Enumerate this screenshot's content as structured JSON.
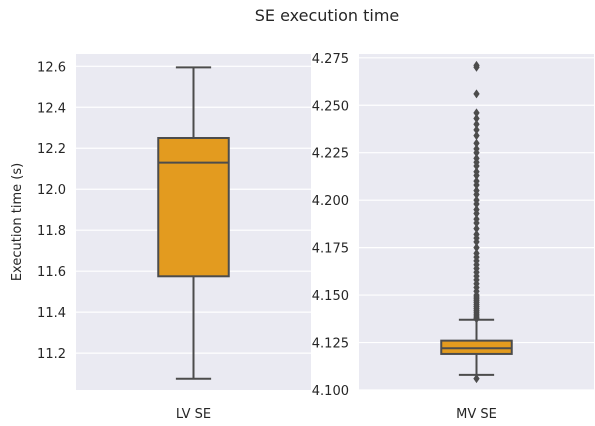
{
  "figure": {
    "title": "SE execution time",
    "colors": {
      "panel_bg": "#EAEAF2",
      "grid": "#FFFFFF",
      "box_fill": "#E39B1F",
      "line": "#4C4C4C",
      "text": "#262626"
    }
  },
  "chart_data": [
    {
      "type": "box",
      "title": "",
      "categories": [
        "LV SE"
      ],
      "xlabel": "",
      "ylabel": "Execution time (s)",
      "ylim": [
        11.02,
        12.66
      ],
      "yticks": [
        11.2,
        11.4,
        11.6,
        11.8,
        12.0,
        12.2,
        12.4,
        12.6
      ],
      "ytick_labels": [
        "11.2",
        "11.4",
        "11.6",
        "11.8",
        "12.0",
        "12.2",
        "12.4",
        "12.6"
      ],
      "grid": true,
      "boxes": [
        {
          "category": "LV SE",
          "whisker_low": 11.075,
          "q1": 11.575,
          "median": 12.13,
          "q3": 12.25,
          "whisker_high": 12.595,
          "outliers": []
        }
      ]
    },
    {
      "type": "box",
      "title": "",
      "categories": [
        "MV SE"
      ],
      "xlabel": "",
      "ylabel": "",
      "ylim": [
        4.1,
        4.277
      ],
      "yticks": [
        4.1,
        4.125,
        4.15,
        4.175,
        4.2,
        4.225,
        4.25,
        4.275
      ],
      "ytick_labels": [
        "4.100",
        "4.125",
        "4.150",
        "4.175",
        "4.200",
        "4.225",
        "4.250",
        "4.275"
      ],
      "grid": true,
      "boxes": [
        {
          "category": "MV SE",
          "whisker_low": 4.108,
          "q1": 4.119,
          "median": 4.122,
          "q3": 4.126,
          "whisker_high": 4.137,
          "outliers": [
            4.106,
            4.1375,
            4.138,
            4.139,
            4.14,
            4.141,
            4.142,
            4.143,
            4.144,
            4.145,
            4.146,
            4.147,
            4.148,
            4.149,
            4.15,
            4.152,
            4.154,
            4.156,
            4.158,
            4.16,
            4.162,
            4.164,
            4.166,
            4.168,
            4.17,
            4.172,
            4.175,
            4.178,
            4.18,
            4.182,
            4.185,
            4.188,
            4.19,
            4.193,
            4.195,
            4.198,
            4.2,
            4.203,
            4.205,
            4.208,
            4.21,
            4.213,
            4.215,
            4.218,
            4.22,
            4.222,
            4.225,
            4.227,
            4.23,
            4.234,
            4.237,
            4.24,
            4.243,
            4.246,
            4.256,
            4.27,
            4.271
          ]
        }
      ]
    }
  ]
}
